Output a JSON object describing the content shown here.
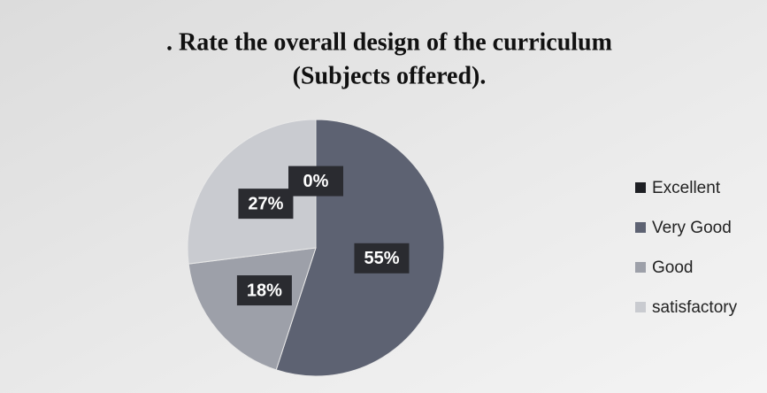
{
  "chart_data": {
    "type": "pie",
    "title": [
      ". Rate the overall design of the curriculum",
      "(Subjects offered)."
    ],
    "categories": [
      "Excellent",
      "Very Good",
      "Good",
      "satisfactory"
    ],
    "values": [
      0,
      55,
      18,
      27
    ],
    "value_labels": [
      "0%",
      "55%",
      "18%",
      "27%"
    ],
    "colors": [
      "#1e1f24",
      "#5d6272",
      "#9da0a9",
      "#c9cbd0"
    ],
    "legend": "right"
  }
}
